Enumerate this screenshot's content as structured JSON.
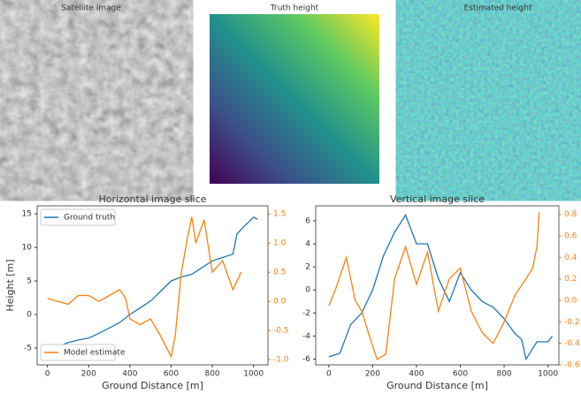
{
  "images": [
    {
      "title": "Satellite image"
    },
    {
      "title": "Truth height"
    },
    {
      "title": "Estimated height"
    }
  ],
  "chart_data": [
    {
      "type": "line",
      "title": "Horizontal image slice",
      "xlabel": "Ground Distance [m]",
      "ylabel": "Height [m]",
      "xlim": [
        -50,
        1070
      ],
      "xticks": [
        0,
        200,
        400,
        600,
        800,
        1000
      ],
      "ylim": [
        -7.5,
        16.2
      ],
      "yticks": [
        -5,
        0,
        5,
        10,
        15
      ],
      "y2lim": [
        -1.09,
        1.64
      ],
      "y2ticks": [
        {
          "value": -1,
          "label": "-1.0"
        },
        -0.5,
        {
          "value": 0,
          "label": "0.0"
        },
        0.5,
        {
          "value": 1,
          "label": "1.0"
        },
        1.5
      ],
      "series": [
        {
          "name": "Ground truth",
          "color": "#1f77b4",
          "legend_loc": "upper left",
          "x": [
            0,
            50,
            100,
            150,
            200,
            250,
            300,
            350,
            400,
            450,
            500,
            550,
            600,
            650,
            700,
            750,
            800,
            850,
            900,
            920,
            950,
            1000,
            1020
          ],
          "values": [
            -5.5,
            -4.8,
            -4.2,
            -3.8,
            -3.5,
            -2.8,
            -2,
            -1.2,
            0,
            1,
            2,
            3.5,
            5,
            5.6,
            6,
            7,
            8,
            8.5,
            9,
            12,
            13,
            14.5,
            14.2
          ]
        },
        {
          "name": "Model estimate",
          "color": "#ff7f0e",
          "axis": "y2",
          "legend_loc": "lower left",
          "x": [
            0,
            50,
            100,
            150,
            200,
            250,
            300,
            350,
            380,
            400,
            450,
            500,
            550,
            600,
            620,
            650,
            680,
            700,
            720,
            760,
            800,
            850,
            900,
            940
          ],
          "values": [
            0.05,
            0,
            -0.05,
            0.1,
            0.1,
            0,
            0.1,
            0.2,
            0.05,
            -0.3,
            -0.4,
            -0.3,
            -0.6,
            -0.95,
            -0.6,
            0.5,
            1.1,
            1.45,
            1,
            1.4,
            0.5,
            0.7,
            0.2,
            0.5
          ]
        }
      ]
    },
    {
      "type": "line",
      "title": "Vertical image slice",
      "xlabel": "Ground Distance [m]",
      "xlim": [
        -60,
        1050
      ],
      "xticks": [
        0,
        200,
        400,
        600,
        800,
        1000
      ],
      "ylim": [
        -6.5,
        7.3
      ],
      "yticks": [
        -6,
        -4,
        -2,
        0,
        2,
        4,
        6
      ],
      "y2lim": [
        -0.6,
        0.88
      ],
      "y2ticks": [
        -0.6,
        -0.4,
        -0.2,
        {
          "value": 0,
          "label": "0.0"
        },
        0.2,
        0.4,
        0.6,
        0.8
      ],
      "series": [
        {
          "color": "#1f77b4",
          "x": [
            0,
            50,
            100,
            150,
            200,
            250,
            300,
            350,
            400,
            450,
            500,
            550,
            600,
            650,
            700,
            750,
            800,
            850,
            880,
            900,
            950,
            1000,
            1020
          ],
          "values": [
            -5.8,
            -5.5,
            -3,
            -2,
            0,
            3,
            5,
            6.5,
            4,
            4,
            1,
            -1,
            1.5,
            0,
            -1,
            -1.5,
            -2.5,
            -3.8,
            -4.3,
            -6,
            -4.5,
            -4.5,
            -4
          ]
        },
        {
          "color": "#ff7f0e",
          "axis": "y2",
          "x": [
            0,
            30,
            80,
            120,
            150,
            180,
            220,
            260,
            300,
            350,
            400,
            450,
            500,
            550,
            600,
            650,
            700,
            750,
            800,
            850,
            900,
            930,
            950,
            960
          ],
          "values": [
            -0.05,
            0.1,
            0.4,
            0,
            -0.1,
            -0.3,
            -0.55,
            -0.5,
            0.2,
            0.5,
            0.15,
            0.45,
            -0.1,
            0.2,
            0.3,
            -0.1,
            -0.3,
            -0.4,
            -0.2,
            0.05,
            0.2,
            0.3,
            0.5,
            0.82
          ]
        }
      ]
    }
  ]
}
